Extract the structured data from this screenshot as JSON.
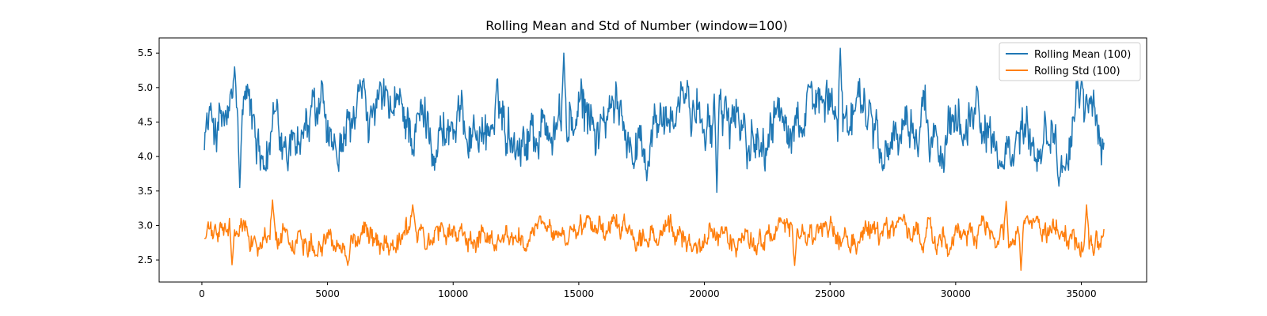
{
  "chart_data": {
    "type": "line",
    "title": "Rolling Mean and Std of Number (window=100)",
    "xlabel": "",
    "ylabel": "",
    "xlim": [
      -1700,
      37600
    ],
    "ylim": [
      2.18,
      5.72
    ],
    "x_ticks": [
      0,
      5000,
      10000,
      15000,
      20000,
      25000,
      30000,
      35000
    ],
    "x_tick_labels": [
      "0",
      "5000",
      "10000",
      "15000",
      "20000",
      "25000",
      "30000",
      "35000"
    ],
    "y_ticks": [
      2.5,
      3.0,
      3.5,
      4.0,
      4.5,
      5.0,
      5.5
    ],
    "y_tick_labels": [
      "2.5",
      "3.0",
      "3.5",
      "4.0",
      "4.5",
      "5.0",
      "5.5"
    ],
    "grid": false,
    "legend_position": "top-right",
    "x_range": [
      99,
      35900
    ],
    "series": [
      {
        "name": "Rolling Mean (100)",
        "color": "#1f77b4",
        "style": "noisy",
        "mean_level": 4.47,
        "typical_min": 3.8,
        "typical_max": 5.1,
        "observed_min": 3.48,
        "observed_max": 5.57,
        "highlights": [
          {
            "x": 1300,
            "y": 5.3
          },
          {
            "x": 1500,
            "y": 3.55
          },
          {
            "x": 14400,
            "y": 5.5
          },
          {
            "x": 17700,
            "y": 3.65
          },
          {
            "x": 20500,
            "y": 3.48
          },
          {
            "x": 25400,
            "y": 5.57
          },
          {
            "x": 34100,
            "y": 3.57
          },
          {
            "x": 35000,
            "y": 5.1
          }
        ]
      },
      {
        "name": "Rolling Std (100)",
        "color": "#ff7f0e",
        "style": "noisy",
        "mean_level": 2.85,
        "typical_min": 2.55,
        "typical_max": 3.15,
        "observed_min": 2.35,
        "observed_max": 3.37,
        "highlights": [
          {
            "x": 1200,
            "y": 2.43
          },
          {
            "x": 2800,
            "y": 3.37
          },
          {
            "x": 5800,
            "y": 2.42
          },
          {
            "x": 8400,
            "y": 3.3
          },
          {
            "x": 23600,
            "y": 2.42
          },
          {
            "x": 32000,
            "y": 3.35
          },
          {
            "x": 32600,
            "y": 2.35
          },
          {
            "x": 35200,
            "y": 3.3
          }
        ]
      }
    ]
  }
}
